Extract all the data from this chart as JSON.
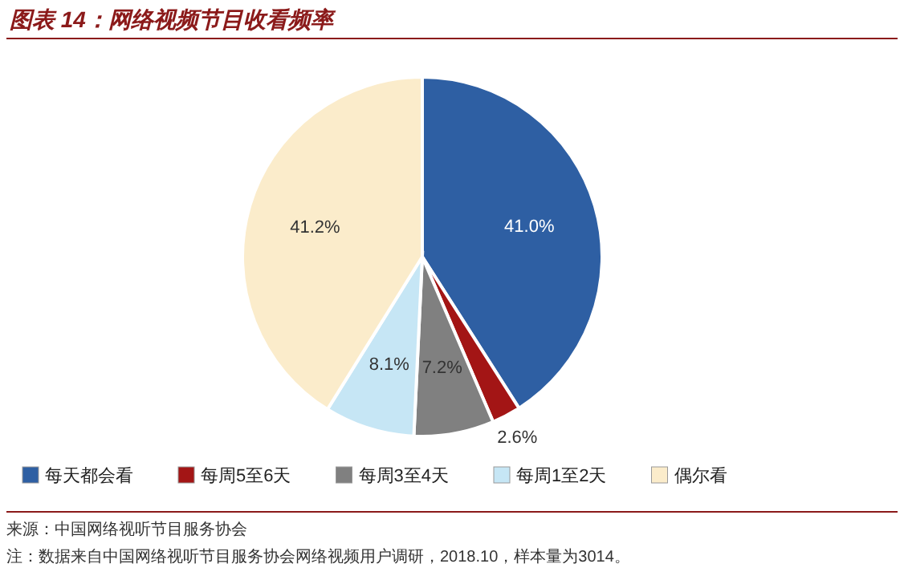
{
  "chart_data": {
    "type": "pie",
    "title": "图表 14：网络视频节目收看频率",
    "categories": [
      "每天都会看",
      "每周5至6天",
      "每周3至4天",
      "每周1至2天",
      "偶尔看"
    ],
    "values": [
      41.0,
      2.6,
      7.2,
      8.1,
      41.2
    ],
    "value_labels": [
      "41.0%",
      "2.6%",
      "7.2%",
      "8.1%",
      "41.2%"
    ],
    "colors": [
      "#2e5fa3",
      "#a31515",
      "#808080",
      "#c6e6f5",
      "#fbeccb"
    ],
    "legend": "bottom",
    "annotations": [
      "来源：中国网络视听节目服务协会",
      "注：数据来自中国网络视听节目服务协会网络视频用户调研，2018.10，样本量为3014。"
    ]
  }
}
